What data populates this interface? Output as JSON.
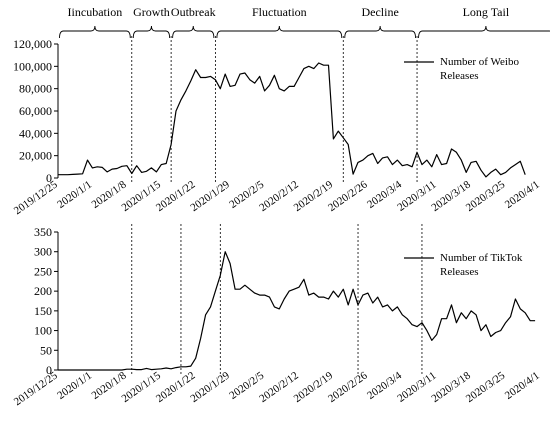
{
  "phases": [
    {
      "label": "Iincubation",
      "start": "2019/12/25",
      "end": "2020/1/9"
    },
    {
      "label": "Growth",
      "start": "2020/1/9",
      "end": "2020/1/17"
    },
    {
      "label": "Outbreak",
      "start": "2020/1/17",
      "end": "2020/1/26"
    },
    {
      "label": "Fluctuation",
      "start": "2020/1/26",
      "end": "2020/2/21"
    },
    {
      "label": "Decline",
      "start": "2020/2/21",
      "end": "2020/3/7"
    },
    {
      "label": "Long Tail",
      "start": "2020/3/7",
      "end": "2020/4/4"
    }
  ],
  "chart_data": [
    {
      "type": "line",
      "x_start": "2019/12/25",
      "x_end": "2020/4/1",
      "tick_labels": [
        "2019/12/25",
        "2020/1/1",
        "2020/1/8",
        "2020/1/15",
        "2020/1/22",
        "2020/1/29",
        "2020/2/5",
        "2020/2/12",
        "2020/2/19",
        "2020/2/26",
        "2020/3/4",
        "2020/3/11",
        "2020/3/18",
        "2020/3/25",
        "2020/4/1"
      ],
      "ylim": [
        0,
        120000
      ],
      "yticks": [
        0,
        20000,
        40000,
        60000,
        80000,
        100000,
        120000
      ],
      "ytick_labels": [
        "0",
        "20,000",
        "40,000",
        "60,000",
        "80,000",
        "100,000",
        "120,000"
      ],
      "dividers": [
        "2020/1/9",
        "2020/1/17",
        "2020/1/26",
        "2020/2/21",
        "2020/3/7"
      ],
      "legend": {
        "position": "top-right",
        "lines": [
          "Number of Weibo",
          "Releases"
        ]
      },
      "series": [
        {
          "name": "Number of Weibo Releases",
          "values": [
            3000,
            3000,
            3000,
            3200,
            3500,
            3800,
            16000,
            9000,
            10000,
            9500,
            5500,
            8000,
            8500,
            10500,
            11000,
            4000,
            11000,
            5000,
            6000,
            9000,
            5500,
            12000,
            13000,
            30000,
            60000,
            70000,
            78000,
            87000,
            97000,
            90000,
            90000,
            91000,
            88000,
            80000,
            93000,
            82000,
            83000,
            93000,
            94000,
            88000,
            85000,
            91000,
            78000,
            83000,
            92000,
            80000,
            78000,
            82000,
            82000,
            90000,
            98000,
            100000,
            98000,
            103000,
            101000,
            101000,
            35000,
            42000,
            36000,
            30000,
            3500,
            14000,
            16000,
            20000,
            22000,
            13000,
            18000,
            19000,
            12000,
            16000,
            11000,
            12000,
            10000,
            23000,
            12000,
            16000,
            10000,
            21000,
            12000,
            13000,
            26000,
            23000,
            16000,
            5000,
            14000,
            15000,
            7000,
            1000,
            5000,
            8000,
            3000,
            5000,
            9000,
            12000,
            15000,
            3000
          ]
        }
      ]
    },
    {
      "type": "line",
      "x_start": "2019/12/25",
      "x_end": "2020/4/1",
      "tick_labels": [
        "2019/12/25",
        "2020/1/1",
        "2020/1/8",
        "2020/1/15",
        "2020/1/22",
        "2020/1/29",
        "2020/2/5",
        "2020/2/12",
        "2020/2/19",
        "2020/2/26",
        "2020/3/4",
        "2020/3/11",
        "2020/3/18",
        "2020/3/25",
        "2020/4/1"
      ],
      "ylim": [
        0,
        350
      ],
      "yticks": [
        0,
        50,
        100,
        150,
        200,
        250,
        300,
        350
      ],
      "ytick_labels": [
        "0",
        "50",
        "100",
        "150",
        "200",
        "250",
        "300",
        "350"
      ],
      "dividers": [
        "2020/1/9",
        "2020/1/19",
        "2020/1/27",
        "2020/2/24",
        "2020/3/8"
      ],
      "legend": {
        "position": "top-right",
        "lines": [
          "Number of TikTok",
          "Releases"
        ]
      },
      "series": [
        {
          "name": "Number of TikTok Releases",
          "values": [
            0,
            0,
            0,
            0,
            0,
            0,
            0,
            0,
            0,
            0,
            0,
            0,
            0,
            0,
            2,
            2,
            1,
            1,
            4,
            1,
            2,
            3,
            5,
            3,
            6,
            8,
            8,
            10,
            30,
            80,
            140,
            160,
            200,
            240,
            300,
            270,
            205,
            205,
            215,
            205,
            195,
            190,
            190,
            185,
            160,
            155,
            180,
            200,
            205,
            210,
            230,
            190,
            195,
            185,
            185,
            180,
            200,
            185,
            205,
            165,
            205,
            165,
            190,
            195,
            170,
            185,
            160,
            165,
            150,
            160,
            140,
            130,
            115,
            110,
            120,
            100,
            75,
            90,
            130,
            130,
            165,
            120,
            145,
            130,
            150,
            140,
            100,
            115,
            85,
            95,
            100,
            120,
            135,
            180,
            155,
            145,
            125,
            125
          ]
        }
      ]
    }
  ]
}
